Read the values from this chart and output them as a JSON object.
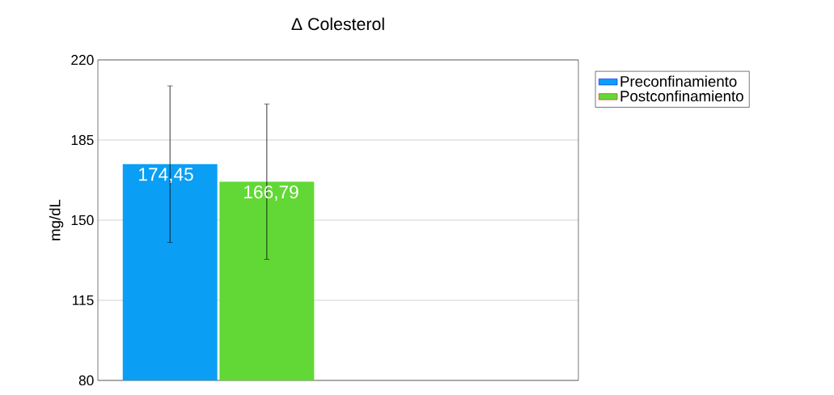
{
  "chart_data": {
    "type": "bar",
    "title": "Δ Colesterol",
    "ylabel": "mg/dL",
    "categories": [
      null
    ],
    "series": [
      {
        "name": "Preconfinamiento",
        "color": "#0a9ff5",
        "values": [
          174.45
        ],
        "errors": [
          34.2
        ],
        "value_labels": [
          "174,45"
        ]
      },
      {
        "name": "Postconfinamiento",
        "color": "#62d836",
        "values": [
          166.79
        ],
        "errors": [
          33.9
        ],
        "value_labels": [
          "166,79"
        ]
      }
    ],
    "ylim": [
      80,
      220
    ],
    "yticks": [
      80,
      115,
      150,
      185,
      220
    ],
    "grid": "y",
    "legend": "top right",
    "tick_labels": "y"
  }
}
